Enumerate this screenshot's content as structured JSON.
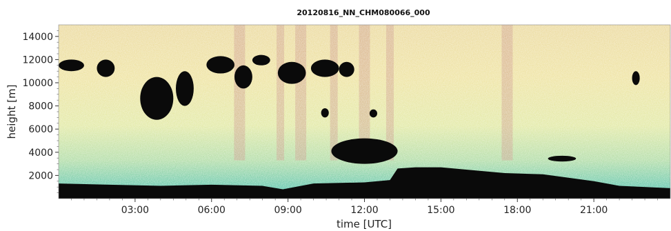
{
  "chart_data": {
    "type": "heatmap",
    "title": "20120816_NN_CHM080066_000",
    "xlabel": "time [UTC]",
    "ylabel": "height [m]",
    "xlim": [
      0,
      24
    ],
    "ylim": [
      0,
      15000
    ],
    "x_ticks": [
      {
        "value": 3,
        "label": "03:00"
      },
      {
        "value": 6,
        "label": "06:00"
      },
      {
        "value": 9,
        "label": "09:00"
      },
      {
        "value": 12,
        "label": "12:00"
      },
      {
        "value": 15,
        "label": "15:00"
      },
      {
        "value": 18,
        "label": "18:00"
      },
      {
        "value": 21,
        "label": "21:00"
      }
    ],
    "y_ticks": [
      {
        "value": 2000,
        "label": "2000"
      },
      {
        "value": 4000,
        "label": "4000"
      },
      {
        "value": 6000,
        "label": "6000"
      },
      {
        "value": 8000,
        "label": "8000"
      },
      {
        "value": 10000,
        "label": "10000"
      },
      {
        "value": 12000,
        "label": "12000"
      },
      {
        "value": 14000,
        "label": "14000"
      }
    ],
    "colormap": [
      "#5fc3b0",
      "#8fd2a8",
      "#c9e6a2",
      "#ecebae",
      "#f2e2a0",
      "#e8c89a",
      "#c99586"
    ],
    "cloud_color": "#0a0a0a",
    "cloud_regions": [
      {
        "x": [
          0.0,
          1.0
        ],
        "y": [
          11000,
          12000
        ]
      },
      {
        "x": [
          1.5,
          2.2
        ],
        "y": [
          10500,
          12000
        ]
      },
      {
        "x": [
          3.2,
          4.5
        ],
        "y": [
          6800,
          10500
        ]
      },
      {
        "x": [
          4.6,
          5.3
        ],
        "y": [
          8000,
          11000
        ]
      },
      {
        "x": [
          5.8,
          6.9
        ],
        "y": [
          10800,
          12300
        ]
      },
      {
        "x": [
          6.9,
          7.6
        ],
        "y": [
          9500,
          11500
        ]
      },
      {
        "x": [
          7.6,
          8.3
        ],
        "y": [
          11500,
          12400
        ]
      },
      {
        "x": [
          8.6,
          9.7
        ],
        "y": [
          9900,
          11800
        ]
      },
      {
        "x": [
          9.9,
          11.0
        ],
        "y": [
          10500,
          12000
        ]
      },
      {
        "x": [
          11.0,
          11.6
        ],
        "y": [
          10500,
          11800
        ]
      },
      {
        "x": [
          10.3,
          10.6
        ],
        "y": [
          7000,
          7800
        ]
      },
      {
        "x": [
          12.2,
          12.5
        ],
        "y": [
          7000,
          7700
        ]
      },
      {
        "x": [
          10.7,
          13.3
        ],
        "y": [
          3000,
          5200
        ]
      },
      {
        "x": [
          22.5,
          22.8
        ],
        "y": [
          9800,
          11000
        ]
      },
      {
        "x": [
          19.2,
          20.3
        ],
        "y": [
          3200,
          3700
        ]
      }
    ],
    "boundary_layer": [
      {
        "t": 0.0,
        "h": 1300
      },
      {
        "t": 2.0,
        "h": 1200
      },
      {
        "t": 4.0,
        "h": 1100
      },
      {
        "t": 6.0,
        "h": 1200
      },
      {
        "t": 8.0,
        "h": 1100
      },
      {
        "t": 8.8,
        "h": 800
      },
      {
        "t": 10.0,
        "h": 1300
      },
      {
        "t": 12.0,
        "h": 1400
      },
      {
        "t": 13.0,
        "h": 1600
      },
      {
        "t": 13.3,
        "h": 2600
      },
      {
        "t": 14.0,
        "h": 2700
      },
      {
        "t": 15.0,
        "h": 2700
      },
      {
        "t": 16.0,
        "h": 2500
      },
      {
        "t": 17.5,
        "h": 2200
      },
      {
        "t": 19.0,
        "h": 2100
      },
      {
        "t": 21.0,
        "h": 1500
      },
      {
        "t": 22.0,
        "h": 1100
      },
      {
        "t": 24.0,
        "h": 900
      }
    ],
    "grid": false,
    "legend": "none"
  }
}
